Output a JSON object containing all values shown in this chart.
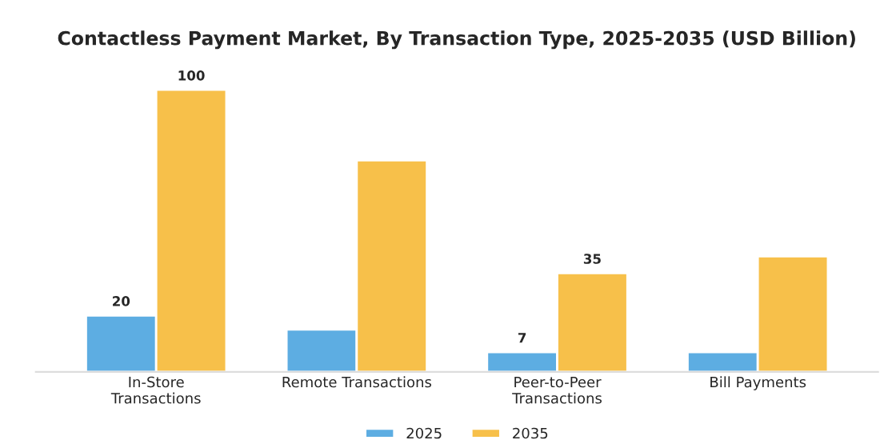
{
  "chart_data": {
    "type": "bar",
    "title": "Contactless Payment Market, By Transaction Type, 2025-2035 (USD Billion)",
    "categories": [
      "In-Store\nTransactions",
      "Remote Transactions",
      "Peer-to-Peer\nTransactions",
      "Bill Payments"
    ],
    "series": [
      {
        "name": "2025",
        "color": "#5dade2",
        "values": [
          20,
          15,
          7,
          7
        ],
        "value_labels": [
          "20",
          null,
          "7",
          null
        ]
      },
      {
        "name": "2035",
        "color": "#f7c04a",
        "values": [
          100,
          75,
          35,
          41
        ],
        "value_labels": [
          "100",
          null,
          "35",
          null
        ]
      }
    ],
    "legend": "bottom",
    "grid": false
  }
}
